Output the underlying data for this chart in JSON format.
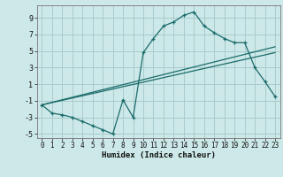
{
  "title": "",
  "xlabel": "Humidex (Indice chaleur)",
  "background_color": "#cde8e8",
  "grid_color": "#a8cccc",
  "line_color": "#1a6b6b",
  "xlim": [
    -0.5,
    23.5
  ],
  "ylim": [
    -5.5,
    10.5
  ],
  "yticks": [
    -5,
    -3,
    -1,
    1,
    3,
    5,
    7,
    9
  ],
  "xticks": [
    0,
    1,
    2,
    3,
    4,
    5,
    6,
    7,
    8,
    9,
    10,
    11,
    12,
    13,
    14,
    15,
    16,
    17,
    18,
    19,
    20,
    21,
    22,
    23
  ],
  "series1_x": [
    0,
    1,
    2,
    3,
    4,
    5,
    6,
    7,
    8,
    9,
    10,
    11,
    12,
    13,
    14,
    15,
    16,
    17,
    18,
    19,
    20,
    21,
    22,
    23
  ],
  "series1_y": [
    -1.5,
    -2.5,
    -2.7,
    -3.0,
    -3.5,
    -4.0,
    -4.5,
    -5.0,
    -0.9,
    -3.0,
    4.8,
    6.5,
    8.0,
    8.5,
    9.3,
    9.7,
    8.0,
    7.2,
    6.5,
    6.0,
    6.0,
    3.0,
    1.3,
    -0.5
  ],
  "series2_x": [
    0,
    23
  ],
  "series2_y": [
    -1.5,
    5.5
  ],
  "series3_x": [
    0,
    23
  ],
  "series3_y": [
    -1.5,
    4.8
  ]
}
